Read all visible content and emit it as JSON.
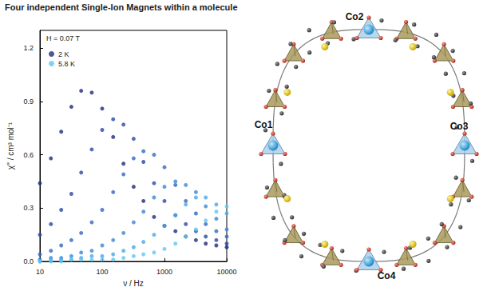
{
  "chart_data": {
    "type": "scatter",
    "title": "Four independent Single-Ion Magnets within a molecule",
    "annotations": [
      "H = 0.07 T"
    ],
    "xlabel": "ν / Hz",
    "ylabel": "χ'' / cm³ mol⁻¹",
    "log": "x",
    "grid": false,
    "legend": "upper left",
    "marker": "circle",
    "xlim": [
      10,
      10000
    ],
    "xticks": [
      10,
      100,
      1000,
      10000
    ],
    "ylim": [
      0,
      1.3
    ],
    "yticks": [
      {
        "value": 0,
        "label": "0.0"
      },
      0.3,
      0.6,
      0.9,
      1.2
    ],
    "x": [
      10,
      15,
      22,
      32,
      46,
      68,
      100,
      150,
      220,
      320,
      460,
      680,
      1000,
      1500,
      2200,
      3200,
      4600,
      6800,
      10000
    ],
    "series": [
      {
        "name": "2 K",
        "color": "#1f2a7a",
        "values": [
          0.44,
          0.58,
          0.73,
          0.87,
          0.96,
          0.95,
          0.86,
          0.7,
          0.55,
          0.42,
          0.34,
          0.25,
          0.2,
          0.17,
          0.14,
          0.12,
          0.1,
          0.09,
          0.08
        ]
      },
      {
        "color": "#2b47a6",
        "values": [
          0.15,
          0.21,
          0.29,
          0.38,
          0.5,
          0.63,
          0.74,
          0.8,
          0.77,
          0.69,
          0.56,
          0.44,
          0.34,
          0.26,
          0.21,
          0.17,
          0.14,
          0.12,
          0.1
        ]
      },
      {
        "color": "#3566c2",
        "values": [
          0.04,
          0.06,
          0.09,
          0.12,
          0.16,
          0.22,
          0.29,
          0.39,
          0.49,
          0.58,
          0.62,
          0.6,
          0.53,
          0.43,
          0.34,
          0.27,
          0.21,
          0.17,
          0.14
        ]
      },
      {
        "color": "#3f86d6",
        "values": [
          0.01,
          0.02,
          0.02,
          0.03,
          0.05,
          0.06,
          0.09,
          0.12,
          0.16,
          0.22,
          0.28,
          0.36,
          0.42,
          0.45,
          0.43,
          0.39,
          0.31,
          0.24,
          0.18
        ]
      },
      {
        "color": "#4aa8e6",
        "values": [
          0,
          0.01,
          0.01,
          0.01,
          0.02,
          0.03,
          0.03,
          0.04,
          0.06,
          0.08,
          0.11,
          0.15,
          0.2,
          0.26,
          0.32,
          0.36,
          0.36,
          0.32,
          0.27
        ]
      },
      {
        "name": "5.8 K",
        "color": "#5cc8f2",
        "values": [
          0,
          0,
          0,
          0.01,
          0.01,
          0.01,
          0.01,
          0.01,
          0.02,
          0.03,
          0.04,
          0.05,
          0.07,
          0.1,
          0.14,
          0.18,
          0.23,
          0.28,
          0.31
        ]
      }
    ]
  },
  "figure": {
    "labels": [
      "Co1",
      "Co2",
      "Co3",
      "Co4"
    ]
  }
}
